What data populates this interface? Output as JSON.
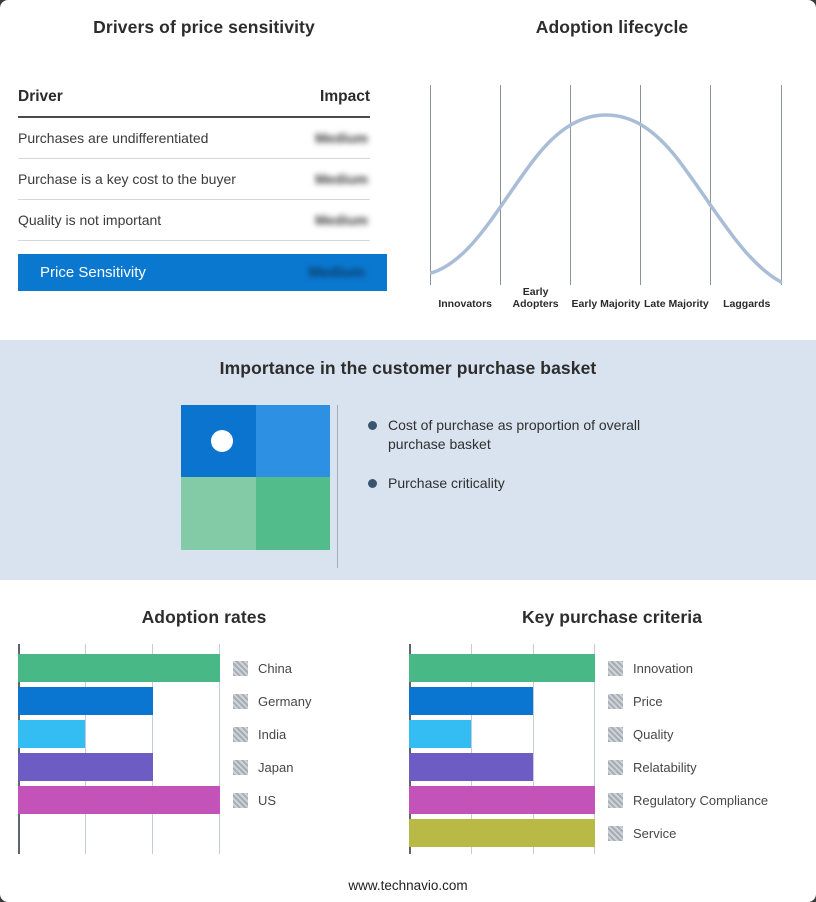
{
  "page": {
    "footer_text": "www.technavio.com",
    "outer_border_color": "#3a3a3a",
    "middle_section_bg": "#d9e3ef"
  },
  "drivers_panel": {
    "title": "Drivers of price sensitivity",
    "columns": {
      "driver": "Driver",
      "impact": "Impact"
    },
    "rows": [
      {
        "driver": "Purchases are undifferentiated",
        "impact": "Medium",
        "redacted": true
      },
      {
        "driver": "Purchase is a key cost to the buyer",
        "impact": "Medium",
        "redacted": true
      },
      {
        "driver": "Quality is not important",
        "impact": "Medium",
        "redacted": true
      }
    ],
    "summary_row": {
      "label": "Price Sensitivity",
      "impact": "Medium",
      "redacted": true,
      "bg_color": "#0b78d0"
    }
  },
  "importance_panel": {
    "title": "Importance in the customer purchase basket",
    "bullets": [
      "Cost of purchase as proportion of overall purchase basket",
      "Purchase criticality"
    ],
    "matrix": {
      "colors": {
        "top_left": "#0b74cf",
        "top_right": "#2e90e2",
        "bottom_left": "#82cba6",
        "bottom_right": "#52bd8b"
      },
      "marker": "white dot in top-left quadrant"
    }
  },
  "chart_data": [
    {
      "key": "adoption_lifecycle",
      "type": "line",
      "title": "Adoption lifecycle",
      "categories": [
        "Innovators",
        "Early Adopters",
        "Early Majority",
        "Late Majority",
        "Laggards"
      ],
      "values_normalized": [
        0.08,
        0.55,
        1.0,
        0.55,
        0.05
      ],
      "shape": "bell curve peaking at Early Majority",
      "curve_color": "#a9bdd7",
      "gridline_color": "#8d939b",
      "legend_position": "none"
    },
    {
      "key": "adoption_rates",
      "type": "bar",
      "orientation": "horizontal",
      "title": "Adoption rates",
      "categories": [
        "China",
        "Germany",
        "India",
        "Japan",
        "US"
      ],
      "values": [
        3,
        2,
        1,
        2,
        3
      ],
      "xlim": [
        0,
        3
      ],
      "colors": [
        "#48b887",
        "#0b76d1",
        "#33bdf2",
        "#6d5cc4",
        "#c353b8"
      ],
      "grid": "vertical gridlines at 0,1,2,3",
      "legend_note": "legend color swatches shown as redacted gray hatch"
    },
    {
      "key": "key_purchase_criteria",
      "type": "bar",
      "orientation": "horizontal",
      "title": "Key purchase criteria",
      "categories": [
        "Innovation",
        "Price",
        "Quality",
        "Relatability",
        "Regulatory Compliance",
        "Service"
      ],
      "values": [
        3,
        2,
        1,
        2,
        3,
        3
      ],
      "xlim": [
        0,
        3
      ],
      "colors": [
        "#48b887",
        "#0b76d1",
        "#33bdf2",
        "#6d5cc4",
        "#c353b8",
        "#b9ba45"
      ],
      "grid": "vertical gridlines at 0,1,2,3",
      "legend_note": "legend color swatches shown as redacted gray hatch"
    }
  ]
}
